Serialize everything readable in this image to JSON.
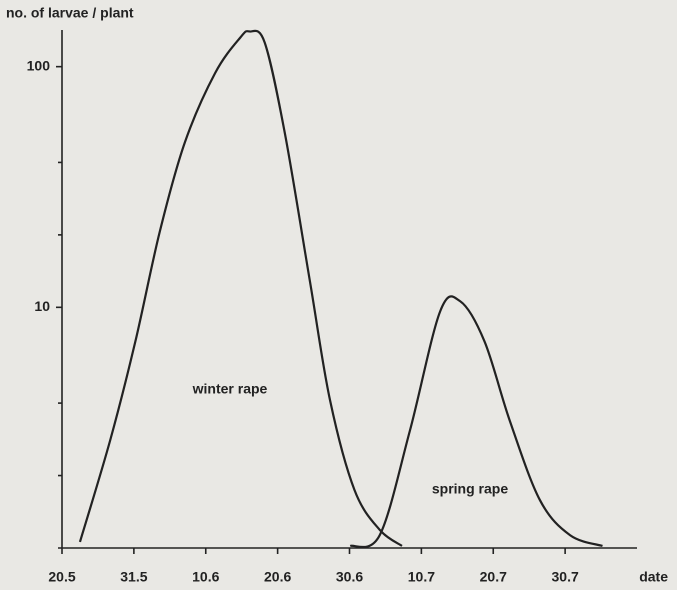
{
  "chart_data": {
    "type": "line",
    "ylabel": "no. of larvae / plant",
    "xlabel": "date",
    "log_y": true,
    "ylim": [
      1,
      142
    ],
    "yticks": [
      10,
      100
    ],
    "yticks_minor": [
      2,
      4,
      20,
      40
    ],
    "xlim": [
      0,
      8
    ],
    "xticks": [
      {
        "value": 0,
        "label": "20.5"
      },
      {
        "value": 1,
        "label": "31.5"
      },
      {
        "value": 2,
        "label": "10.6"
      },
      {
        "value": 3,
        "label": "20.6"
      },
      {
        "value": 4,
        "label": "30.6"
      },
      {
        "value": 5,
        "label": "10.7"
      },
      {
        "value": 6,
        "label": "20.7"
      },
      {
        "value": 7,
        "label": "30.7"
      }
    ],
    "color": "#222222",
    "series": [
      {
        "name": "winter rape",
        "x": [
          0.25,
          0.67,
          1.02,
          1.36,
          1.71,
          2.13,
          2.48,
          2.61,
          2.82,
          3.1,
          3.45,
          3.73,
          4.07,
          4.42,
          4.73
        ],
        "values": [
          1.06,
          2.8,
          7.2,
          20.6,
          48.5,
          94,
          132,
          140,
          126,
          53,
          12.8,
          4.1,
          1.74,
          1.19,
          1.02
        ]
      },
      {
        "name": "spring rape",
        "x": [
          4.01,
          4.42,
          4.84,
          5.26,
          5.54,
          5.88,
          6.23,
          6.65,
          7.07,
          7.52
        ],
        "values": [
          1.02,
          1.13,
          3.07,
          9.6,
          10.6,
          7.2,
          3.38,
          1.58,
          1.13,
          1.02
        ]
      }
    ]
  }
}
